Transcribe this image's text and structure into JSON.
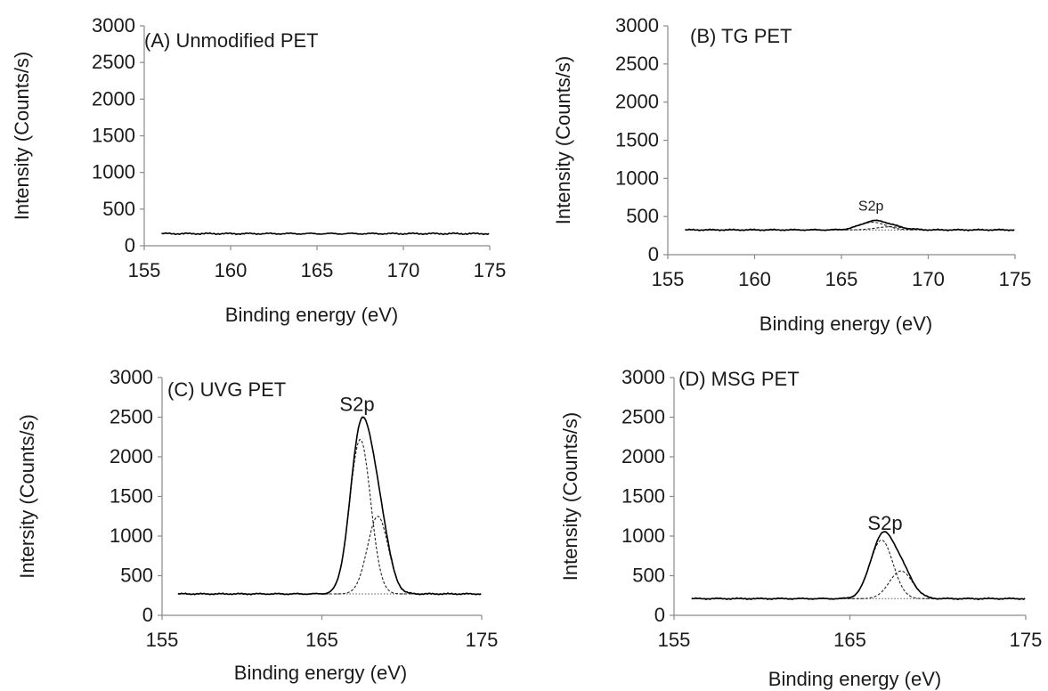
{
  "chart_data": [
    {
      "type": "line",
      "title": "(A) Unmodified PET",
      "xlabel": "Binding energy (eV)",
      "ylabel": "Intensity (Counts/s)",
      "xlim": [
        155,
        175
      ],
      "ylim": [
        0,
        3000
      ],
      "xticks": [
        "155",
        "160",
        "165",
        "170",
        "175"
      ],
      "yticks": [
        "0",
        "500",
        "1000",
        "1500",
        "2000",
        "2500",
        "3000"
      ],
      "baseline": {
        "x_start": 156,
        "x_end": 175,
        "level": 165
      },
      "peaks": [],
      "annotation": ""
    },
    {
      "type": "line",
      "title": "(B) TG PET",
      "xlabel": "Binding energy (eV)",
      "ylabel": "Intensity (Counts/s)",
      "xlim": [
        155,
        175
      ],
      "ylim": [
        0,
        3000
      ],
      "xticks": [
        "155",
        "160",
        "165",
        "170",
        "175"
      ],
      "yticks": [
        "0",
        "500",
        "1000",
        "1500",
        "2000",
        "2500",
        "3000"
      ],
      "baseline": {
        "x_start": 156,
        "x_end": 175,
        "level": 325
      },
      "peaks": [
        {
          "center": 166.8,
          "height": 100,
          "sigma": 0.75
        },
        {
          "center": 167.8,
          "height": 40,
          "sigma": 0.8
        }
      ],
      "annotation": "S2p",
      "annotation_x": 166.7,
      "annotation_y": 580
    },
    {
      "type": "line",
      "title": "(C) UVG PET",
      "xlabel": "Binding energy (eV)",
      "ylabel": "Intersity (Counts/s)",
      "xlim": [
        155,
        175
      ],
      "ylim": [
        0,
        3000
      ],
      "xticks": [
        "155",
        "165",
        "175"
      ],
      "yticks": [
        "0",
        "500",
        "1000",
        "1500",
        "2000",
        "2500",
        "3000"
      ],
      "baseline": {
        "x_start": 156,
        "x_end": 175,
        "level": 270
      },
      "peaks": [
        {
          "center": 167.4,
          "height": 1950,
          "sigma": 0.65
        },
        {
          "center": 168.5,
          "height": 980,
          "sigma": 0.65
        }
      ],
      "annotation": "S2p",
      "annotation_x": 167.2,
      "annotation_y": 2580
    },
    {
      "type": "line",
      "title": "(D) MSG PET",
      "xlabel": "Binding energy (eV)",
      "ylabel": "Intensity (Counts/s)",
      "xlim": [
        155,
        175
      ],
      "ylim": [
        0,
        3000
      ],
      "xticks": [
        "155",
        "165",
        "175"
      ],
      "yticks": [
        "0",
        "500",
        "1000",
        "1500",
        "2000",
        "2500",
        "3000"
      ],
      "baseline": {
        "x_start": 156,
        "x_end": 175,
        "level": 210
      },
      "peaks": [
        {
          "center": 166.8,
          "height": 740,
          "sigma": 0.65
        },
        {
          "center": 167.9,
          "height": 350,
          "sigma": 0.65
        }
      ],
      "annotation": "S2p",
      "annotation_x": 167.0,
      "annotation_y": 1080
    }
  ]
}
